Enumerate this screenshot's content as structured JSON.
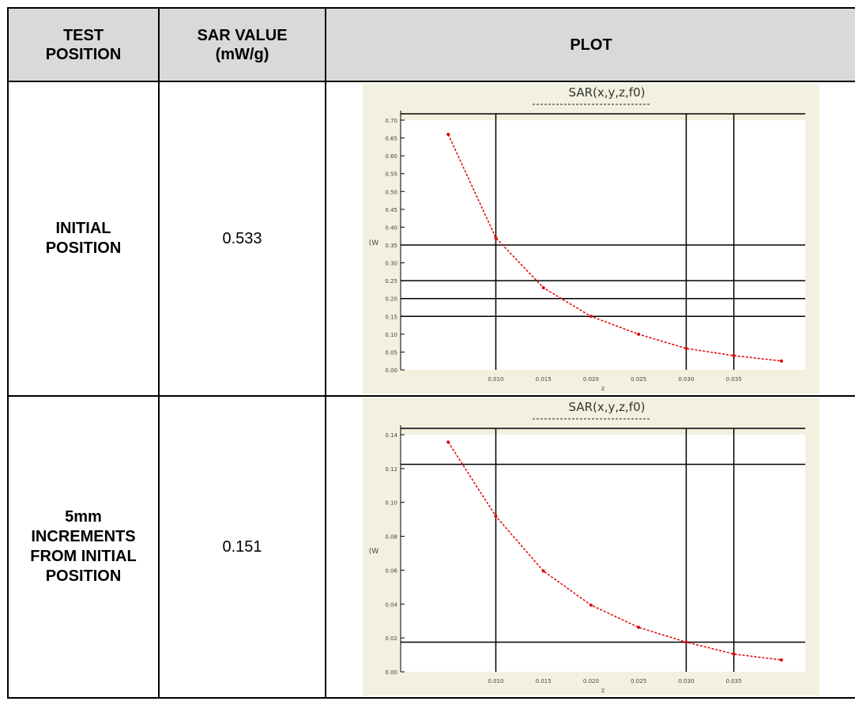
{
  "table": {
    "headers": {
      "position": "TEST\nPOSITION",
      "sar": "SAR VALUE\n(mW/g)",
      "plot": "PLOT"
    },
    "rows": [
      {
        "position": "INITIAL\nPOSITION",
        "sar": "0.533"
      },
      {
        "position": "5mm\nINCREMENTS\nFROM INITIAL\nPOSITION",
        "sar": "0.151"
      }
    ]
  },
  "colors": {
    "plot_background": "#f2f1df",
    "curve": "#e00000",
    "grid": "#000000"
  },
  "chart_data": [
    {
      "type": "line",
      "title": "SAR(x,y,z,f0)",
      "ylabel": "(W",
      "xlabel": "z",
      "x": [
        0.005,
        0.01,
        0.015,
        0.02,
        0.025,
        0.03,
        0.035,
        0.04
      ],
      "series": [
        {
          "values": [
            0.66,
            0.37,
            0.23,
            0.15,
            0.1,
            0.06,
            0.04,
            0.025
          ]
        }
      ],
      "ylim": [
        0.0,
        0.7
      ],
      "yticks": [
        "0.00",
        "0.05",
        "0.10",
        "0.15",
        "0.20",
        "0.25",
        "0.30",
        "0.35",
        "0.40",
        "0.45",
        "0.50",
        "0.55",
        "0.60",
        "0.65",
        "0.70"
      ],
      "xticks": [
        "0.010",
        "0.015",
        "0.020",
        "0.025",
        "0.030",
        "0.035"
      ],
      "grid": true
    },
    {
      "type": "line",
      "title": "SAR(x,y,z,f0)",
      "ylabel": "(W",
      "xlabel": "z",
      "x": [
        0.005,
        0.01,
        0.015,
        0.02,
        0.025,
        0.03,
        0.035,
        0.04
      ],
      "series": [
        {
          "values": [
            0.155,
            0.105,
            0.068,
            0.045,
            0.03,
            0.02,
            0.012,
            0.008
          ]
        }
      ],
      "ylim": [
        0.0,
        0.16
      ],
      "yticks": [
        "0.00",
        "0.02",
        "0.04",
        "0.06",
        "0.08",
        "0.10",
        "0.12",
        "0.14"
      ],
      "xticks": [
        "0.010",
        "0.015",
        "0.020",
        "0.025",
        "0.030",
        "0.035"
      ],
      "grid": true
    }
  ]
}
